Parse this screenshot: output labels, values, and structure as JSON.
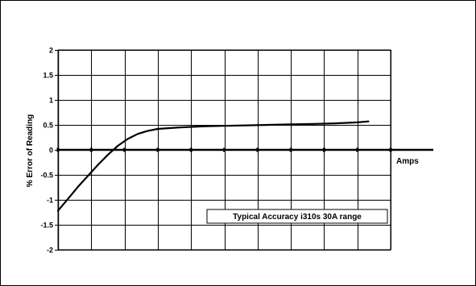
{
  "chart_data": {
    "type": "line",
    "title": "",
    "ylabel": "% Error of Reading",
    "xlabel": "Amps",
    "ylim": [
      -2,
      2
    ],
    "yticks": [
      2,
      1.5,
      1,
      0.5,
      0,
      -0.5,
      -1,
      -1.5,
      -2
    ],
    "ytick_labels": [
      "2",
      "1.5",
      "1",
      "0.5",
      "0",
      "-0.5",
      "-1",
      "-1.5",
      "-2"
    ],
    "xlim": [
      0,
      30
    ],
    "xticks": [
      0,
      3,
      6,
      9,
      12,
      15,
      18,
      21,
      24,
      27,
      30
    ],
    "grid": true,
    "annotation": "Typical Accuracy i310s 30A range",
    "series": [
      {
        "name": "",
        "x": [
          0,
          0.9,
          1.8,
          2.7,
          3.6,
          4.5,
          5.4,
          6.3,
          7.2,
          8.1,
          9,
          11,
          13,
          15,
          17,
          19,
          21,
          23,
          25,
          27,
          28
        ],
        "y": [
          -1.22,
          -0.98,
          -0.74,
          -0.52,
          -0.3,
          -0.1,
          0.08,
          0.22,
          0.32,
          0.38,
          0.42,
          0.45,
          0.47,
          0.48,
          0.49,
          0.5,
          0.51,
          0.52,
          0.53,
          0.55,
          0.57
        ]
      }
    ],
    "colors": {
      "line": "#000000",
      "grid": "#000000",
      "background": "#ffffff"
    }
  }
}
